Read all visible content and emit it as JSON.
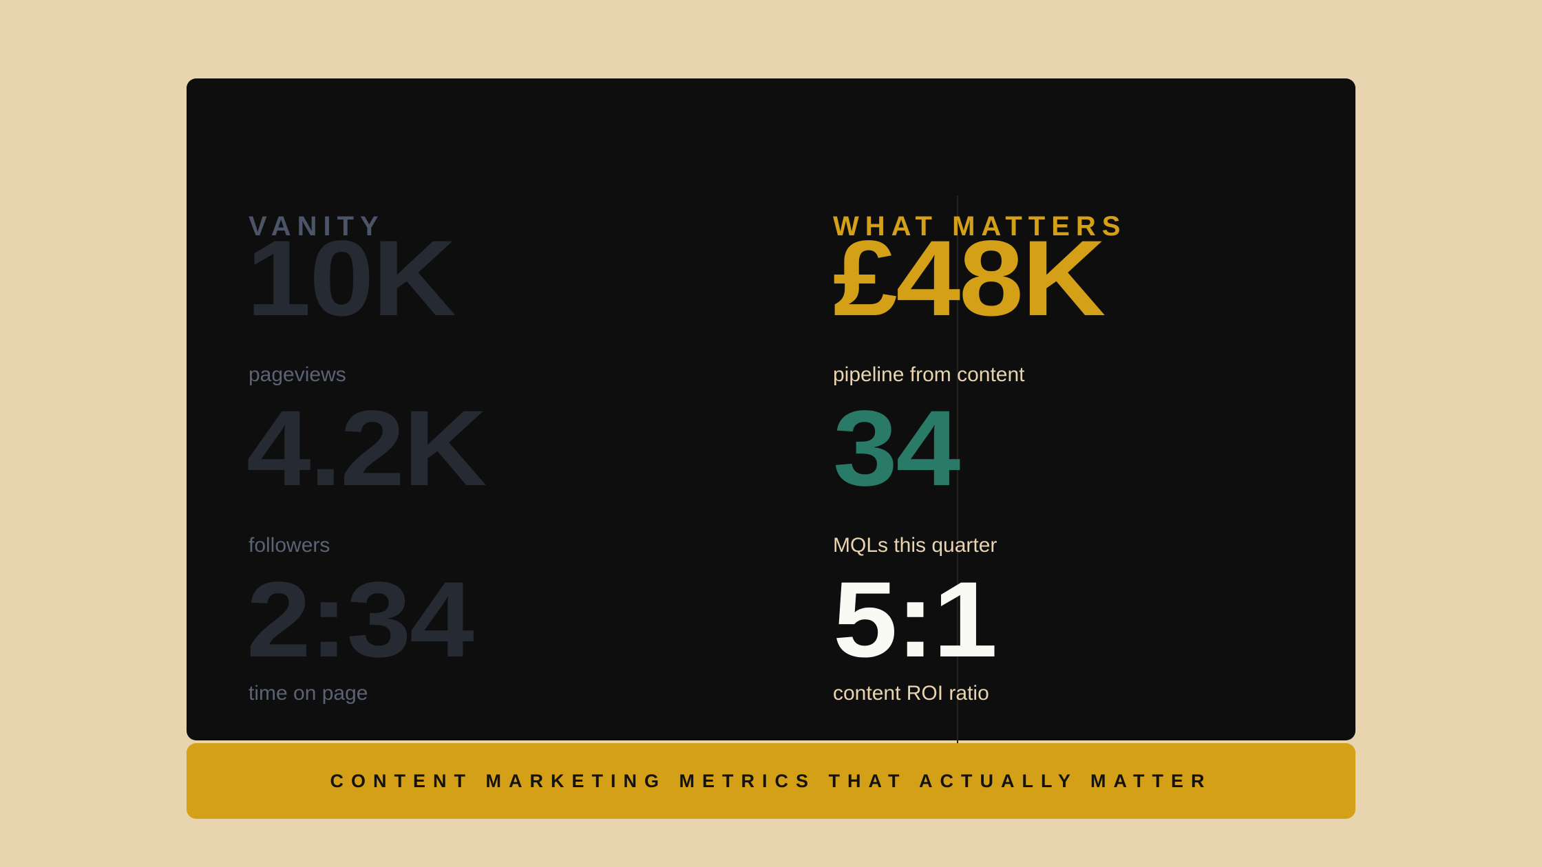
{
  "left": {
    "heading": "VANITY",
    "metrics": [
      {
        "value": "10K",
        "label": "pageviews"
      },
      {
        "value": "4.2K",
        "label": "followers"
      },
      {
        "value": "2:34",
        "label": "time on page"
      }
    ]
  },
  "right": {
    "heading": "WHAT MATTERS",
    "metrics": [
      {
        "value": "£48K",
        "label": "pipeline from content",
        "color": "#D4A017"
      },
      {
        "value": "34",
        "label": "MQLs this quarter",
        "color": "#2A7A68"
      },
      {
        "value": "5:1",
        "label": "content ROI ratio",
        "color": "#FAFAF5"
      }
    ]
  },
  "banner": {
    "text": "CONTENT MARKETING METRICS THAT ACTUALLY MATTER"
  },
  "colors": {
    "background": "#E8D4AE",
    "card": "#0E0E0E",
    "accent": "#D4A017",
    "teal": "#2A7A68"
  }
}
